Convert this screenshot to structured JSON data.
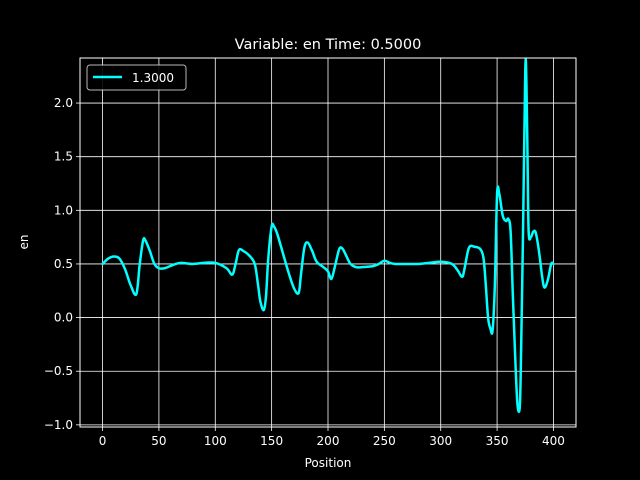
{
  "chart_data": {
    "type": "line",
    "title": "Variable: en Time: 0.5000",
    "xlabel": "Position",
    "ylabel": "en",
    "xlim": [
      -20,
      420
    ],
    "ylim": [
      -1.02,
      2.42
    ],
    "xticks": [
      0,
      50,
      100,
      150,
      200,
      250,
      300,
      350,
      400
    ],
    "xtick_labels": [
      "0",
      "50",
      "100",
      "150",
      "200",
      "250",
      "300",
      "350",
      "400"
    ],
    "yticks": [
      -1.0,
      -0.5,
      0.0,
      0.5,
      1.0,
      1.5,
      2.0
    ],
    "ytick_labels": [
      "−1.0",
      "−0.5",
      "0.0",
      "0.5",
      "1.0",
      "1.5",
      "2.0"
    ],
    "grid": true,
    "legend_position": "top-left",
    "colors": {
      "background": "#000000",
      "foreground": "#ffffff",
      "series": "#00ffff"
    },
    "series": [
      {
        "name": "1.3000",
        "x": [
          0,
          5,
          10,
          15,
          20,
          25,
          30,
          33,
          36,
          38,
          42,
          46,
          50,
          55,
          60,
          65,
          70,
          80,
          90,
          100,
          110,
          115,
          118,
          121,
          125,
          130,
          135,
          138,
          140,
          143,
          145,
          147,
          150,
          152,
          155,
          160,
          165,
          170,
          174,
          176,
          179,
          182,
          186,
          190,
          196,
          200,
          203,
          206,
          210,
          213,
          216,
          220,
          225,
          230,
          240,
          245,
          250,
          255,
          260,
          270,
          280,
          290,
          300,
          310,
          315,
          319,
          321,
          325,
          330,
          335,
          338,
          340,
          342,
          344,
          346,
          348,
          350,
          352,
          355,
          358,
          360,
          362,
          364,
          366,
          368,
          370,
          371,
          373,
          375,
          376,
          377,
          378,
          380,
          382,
          384,
          386,
          388,
          390,
          392,
          395,
          398,
          400
        ],
        "y": [
          0.5,
          0.55,
          0.57,
          0.55,
          0.45,
          0.3,
          0.22,
          0.5,
          0.72,
          0.72,
          0.62,
          0.5,
          0.46,
          0.46,
          0.48,
          0.5,
          0.51,
          0.5,
          0.51,
          0.51,
          0.46,
          0.4,
          0.5,
          0.63,
          0.62,
          0.58,
          0.5,
          0.3,
          0.15,
          0.07,
          0.2,
          0.55,
          0.85,
          0.85,
          0.78,
          0.6,
          0.42,
          0.27,
          0.23,
          0.4,
          0.65,
          0.7,
          0.62,
          0.52,
          0.47,
          0.43,
          0.36,
          0.47,
          0.64,
          0.64,
          0.58,
          0.5,
          0.47,
          0.47,
          0.48,
          0.5,
          0.53,
          0.51,
          0.5,
          0.5,
          0.5,
          0.51,
          0.52,
          0.5,
          0.44,
          0.38,
          0.45,
          0.65,
          0.66,
          0.64,
          0.55,
          0.3,
          0.0,
          -0.1,
          -0.12,
          0.3,
          1.15,
          1.15,
          0.95,
          0.9,
          0.92,
          0.8,
          0.2,
          -0.35,
          -0.8,
          -0.85,
          -0.5,
          0.8,
          2.3,
          2.2,
          1.5,
          0.8,
          0.75,
          0.8,
          0.8,
          0.7,
          0.55,
          0.38,
          0.28,
          0.35,
          0.5,
          0.5
        ]
      }
    ]
  }
}
